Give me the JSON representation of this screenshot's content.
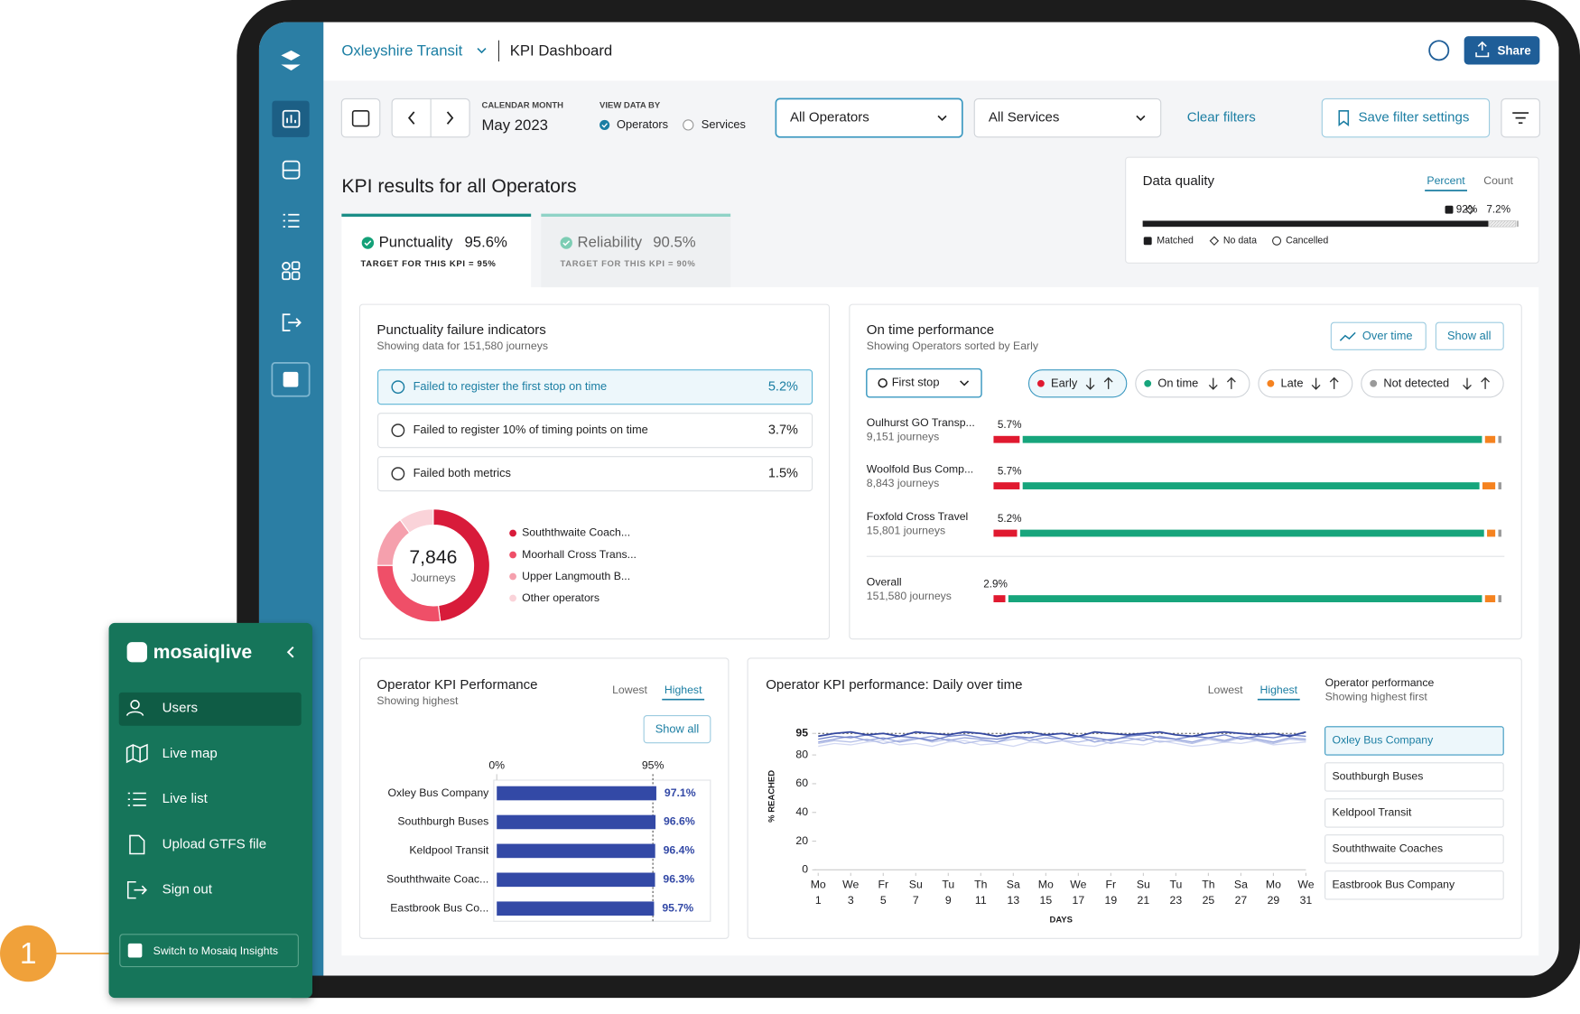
{
  "header": {
    "org": "Oxleyshire Transit",
    "page": "KPI Dashboard",
    "share": "Share"
  },
  "filters": {
    "month_label": "CALENDAR MONTH",
    "month": "May 2023",
    "view_label": "VIEW DATA BY",
    "view_options": [
      "Operators",
      "Services"
    ],
    "operators": "All Operators",
    "services": "All Services",
    "clear": "Clear filters",
    "save": "Save filter settings"
  },
  "kpi": {
    "title": "KPI results for all Operators",
    "tabs": [
      {
        "name": "Punctuality",
        "value": "95.6%",
        "target": "TARGET FOR THIS KPI = 95%"
      },
      {
        "name": "Reliability",
        "value": "90.5%",
        "target": "TARGET FOR THIS KPI = 90%"
      }
    ]
  },
  "failure_card": {
    "title": "Punctuality failure indicators",
    "subtitle": "Showing data for 151,580 journeys",
    "items": [
      {
        "label": "Failed to register the first stop on time",
        "value": "5.2%"
      },
      {
        "label": "Failed to register 10% of timing points on time",
        "value": "3.7%"
      },
      {
        "label": "Failed both metrics",
        "value": "1.5%"
      }
    ]
  },
  "menu": {
    "brand": "mosaiqlive",
    "items": [
      "Users",
      "Live map",
      "Live list",
      "Upload GTFS file",
      "Sign out"
    ],
    "switch": "Switch to Mosaiq Insights"
  },
  "callout": "1",
  "chart_data": [
    {
      "type": "stacked_bar",
      "title": "Data quality",
      "options": [
        "Percent",
        "Count"
      ],
      "xlim": [
        0,
        100
      ],
      "series": [
        {
          "name": "Matched",
          "color": "#1d1d1f",
          "values": [
            92
          ],
          "value_labels": [
            "92%"
          ]
        },
        {
          "name": "No data",
          "color": "#e4e4e4",
          "values": [
            7.2
          ],
          "value_labels": [
            "7.2%"
          ]
        },
        {
          "name": "Cancelled",
          "color": "#b5b5b5",
          "values": [
            0.8
          ]
        }
      ]
    },
    {
      "type": "pie",
      "center_value": "7,846",
      "center_label": "Journeys",
      "categories": [
        "Souththwaite Coach...",
        "Moorhall Cross Trans...",
        "Upper Langmouth B...",
        "Other operators"
      ],
      "values": [
        48,
        27,
        15,
        10
      ],
      "colors": [
        "#d81b3a",
        "#ef4f68",
        "#f5a0ad",
        "#fad3d9"
      ]
    },
    {
      "type": "stacked_bar",
      "title": "On time performance",
      "subtitle": "Showing Operators sorted by Early",
      "buttons": [
        "Over time",
        "Show all"
      ],
      "dropdown": "First stop",
      "xlim": [
        0,
        100
      ],
      "categories": [
        "Oulhurst GO Transp...",
        "Woolfold Bus Comp...",
        "Foxfold Cross Travel",
        "Overall"
      ],
      "category_notes": [
        "9,151 journeys",
        "8,843 journeys",
        "15,801 journeys",
        "151,580 journeys"
      ],
      "series": [
        {
          "name": "Early",
          "color": "#e0192f",
          "values": [
            5.7,
            5.7,
            5.2,
            2.9
          ],
          "value_labels": [
            "5.7%",
            "5.7%",
            "5.2%",
            "2.9%"
          ]
        },
        {
          "name": "On time",
          "color": "#17a57c",
          "values": [
            90.5,
            90.0,
            91.4,
            93.3
          ]
        },
        {
          "name": "Late",
          "color": "#f5821f",
          "values": [
            2.6,
            3.1,
            2.2,
            2.6
          ]
        },
        {
          "name": "Not detected",
          "color": "#9a9a9a",
          "values": [
            1.2,
            1.2,
            1.2,
            1.2
          ]
        }
      ]
    },
    {
      "type": "bar",
      "title": "Operator KPI Performance",
      "subtitle": "Showing highest",
      "options": [
        "Lowest",
        "Highest"
      ],
      "button": "Show all",
      "color": "#3349a6",
      "categories": [
        "Oxley Bus Company",
        "Southburgh Buses",
        "Keldpool Transit",
        "Souththwaite Coac...",
        "Eastbrook Bus Co..."
      ],
      "values": [
        97.1,
        96.6,
        96.4,
        96.3,
        95.7
      ],
      "value_labels": [
        "97.1%",
        "96.6%",
        "96.4%",
        "96.3%",
        "95.7%"
      ],
      "xlim": [
        0,
        130
      ],
      "xticks": [
        {
          "value": 0,
          "label": "0%"
        },
        {
          "value": 95,
          "label": "95%"
        }
      ]
    },
    {
      "type": "line",
      "title": "Operator KPI performance: Daily over time",
      "options": [
        "Lowest",
        "Highest"
      ],
      "legend_title": "Operator performance",
      "legend_subtitle": "Showing highest first",
      "y_label": "% REACHED",
      "x_label": "DAYS",
      "ylim": [
        0,
        100
      ],
      "yticks": [
        0,
        20,
        40,
        60,
        80,
        95
      ],
      "target": 95,
      "xlim": [
        1,
        31
      ],
      "x": [
        1,
        2,
        3,
        4,
        5,
        6,
        7,
        8,
        9,
        10,
        11,
        12,
        13,
        14,
        15,
        16,
        17,
        18,
        19,
        20,
        21,
        22,
        23,
        24,
        25,
        26,
        27,
        28,
        29,
        30,
        31
      ],
      "xticks": [
        1,
        3,
        5,
        7,
        9,
        11,
        13,
        15,
        17,
        19,
        21,
        23,
        25,
        27,
        29,
        31
      ],
      "x_day_names": [
        "Mo",
        "We",
        "Fr",
        "Su",
        "Tu",
        "Th",
        "Sa",
        "Mo",
        "We",
        "Fr",
        "Su",
        "Tu",
        "Th",
        "Sa",
        "Mo",
        "We"
      ],
      "series": [
        {
          "name": "Oxley Bus Company",
          "color": "#33479f",
          "values": [
            93,
            95,
            96,
            94,
            95,
            93,
            96,
            95,
            94,
            96,
            95,
            93,
            95,
            96,
            94,
            95,
            93,
            96,
            95,
            94,
            95,
            96,
            94,
            93,
            95,
            96,
            95,
            94,
            95,
            93,
            96
          ]
        },
        {
          "name": "Southburgh Buses",
          "color": "#6f81c9",
          "values": [
            91,
            93,
            92,
            94,
            91,
            93,
            92,
            90,
            93,
            94,
            92,
            91,
            93,
            92,
            94,
            91,
            93,
            92,
            90,
            93,
            94,
            92,
            91,
            93,
            92,
            94,
            91,
            93,
            92,
            94,
            93
          ]
        },
        {
          "name": "Keldpool Transit",
          "color": "#98a6dc",
          "values": [
            89,
            91,
            93,
            90,
            92,
            89,
            91,
            93,
            90,
            92,
            91,
            89,
            93,
            90,
            92,
            91,
            93,
            89,
            91,
            92,
            90,
            93,
            91,
            89,
            92,
            90,
            93,
            91,
            89,
            92,
            91
          ]
        },
        {
          "name": "Souththwaite Coaches",
          "color": "#b8c2e8",
          "values": [
            88,
            90,
            89,
            91,
            88,
            90,
            92,
            89,
            91,
            88,
            90,
            89,
            91,
            92,
            88,
            90,
            89,
            91,
            88,
            90,
            92,
            89,
            90,
            88,
            91,
            89,
            92,
            90,
            88,
            91,
            90
          ]
        },
        {
          "name": "Eastbrook Bus Company",
          "color": "#d3d9f2",
          "values": [
            86,
            88,
            87,
            89,
            90,
            87,
            88,
            86,
            89,
            90,
            87,
            88,
            86,
            89,
            88,
            90,
            87,
            86,
            89,
            88,
            87,
            90,
            88,
            86,
            87,
            89,
            88,
            90,
            87,
            88,
            89
          ]
        }
      ]
    }
  ]
}
